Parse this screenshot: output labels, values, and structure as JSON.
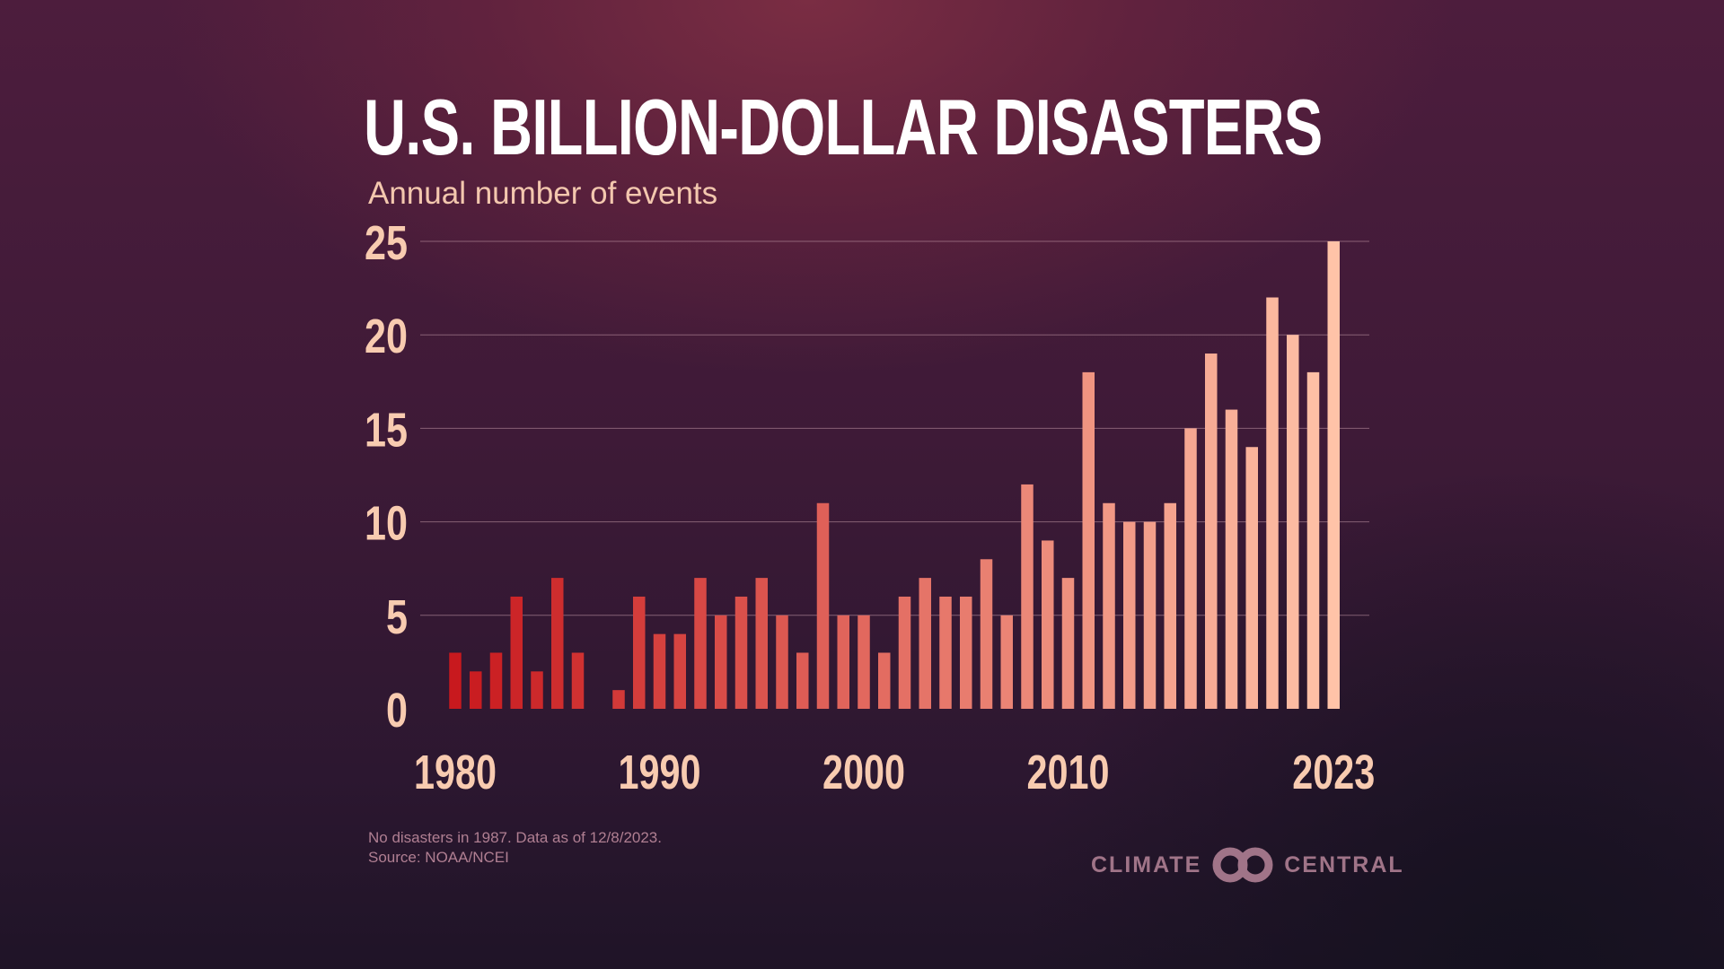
{
  "title": "U.S. BILLION-DOLLAR DISASTERS",
  "subtitle": "Annual number of events",
  "footnote": {
    "line1": "No disasters in 1987. Data as of 12/8/2023.",
    "line2": "Source: NOAA/NCEI"
  },
  "logo": {
    "left_text": "CLIMATE",
    "right_text": "CENTRAL"
  },
  "colors": {
    "bar_start": "#c8191e",
    "bar_end": "#ffc3a8",
    "tick_text": "#f8cbb0",
    "title": "#ffffff"
  },
  "chart_data": {
    "type": "bar",
    "title": "U.S. BILLION-DOLLAR DISASTERS",
    "ylabel": "Annual number of events",
    "xlabel": "",
    "ylim": [
      0,
      25
    ],
    "yticks": [
      0,
      5,
      10,
      15,
      20,
      25
    ],
    "xtick_labels": [
      "1980",
      "1990",
      "2000",
      "2010",
      "2023"
    ],
    "grid": true,
    "categories": [
      1980,
      1981,
      1982,
      1983,
      1984,
      1985,
      1986,
      1987,
      1988,
      1989,
      1990,
      1991,
      1992,
      1993,
      1994,
      1995,
      1996,
      1997,
      1998,
      1999,
      2000,
      2001,
      2002,
      2003,
      2004,
      2005,
      2006,
      2007,
      2008,
      2009,
      2010,
      2011,
      2012,
      2013,
      2014,
      2015,
      2016,
      2017,
      2018,
      2019,
      2020,
      2021,
      2022,
      2023
    ],
    "values": [
      3,
      2,
      3,
      6,
      2,
      7,
      3,
      0,
      1,
      6,
      4,
      4,
      7,
      5,
      6,
      7,
      5,
      3,
      11,
      5,
      5,
      3,
      6,
      7,
      6,
      6,
      8,
      5,
      12,
      9,
      7,
      18,
      11,
      10,
      10,
      11,
      15,
      19,
      16,
      14,
      22,
      20,
      18,
      25
    ]
  }
}
